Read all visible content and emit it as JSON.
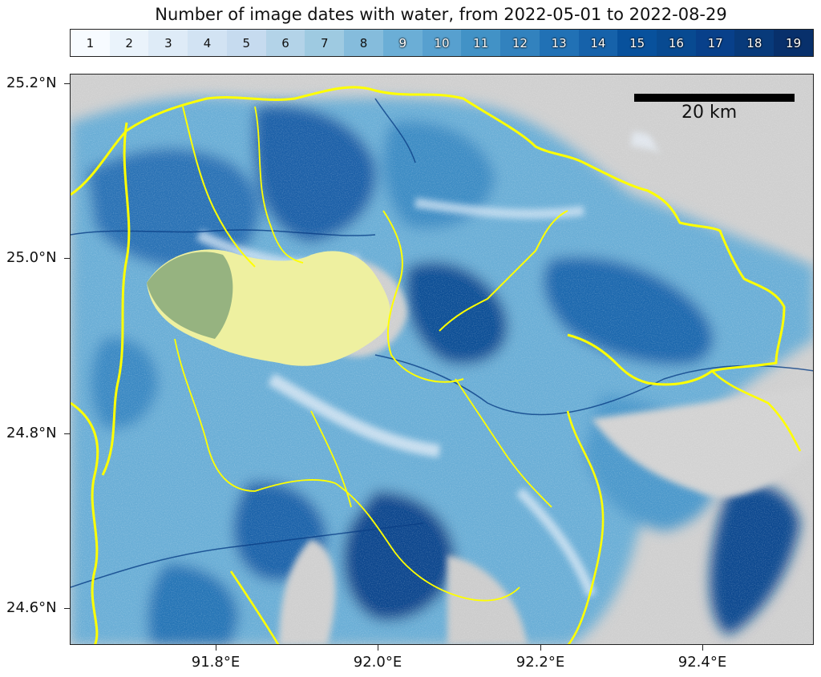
{
  "title": "Number of image dates with water, from 2022-05-01 to 2022-08-29",
  "legend": {
    "labels": [
      "1",
      "2",
      "3",
      "4",
      "5",
      "6",
      "7",
      "8",
      "9",
      "10",
      "11",
      "12",
      "13",
      "14",
      "15",
      "16",
      "17",
      "18",
      "19"
    ],
    "colors": [
      "#f7fbff",
      "#eaf3fb",
      "#deebf7",
      "#d2e3f3",
      "#c6dbef",
      "#b3d3e8",
      "#9ecae1",
      "#85bcdc",
      "#6baed6",
      "#57a0cf",
      "#4292c6",
      "#3282be",
      "#2171b5",
      "#1662aa",
      "#08519c",
      "#084a91",
      "#08408a",
      "#083a7a",
      "#08306b"
    ]
  },
  "scale_bar": {
    "label": "20 km"
  },
  "axes": {
    "y_ticks": [
      "25.2°N",
      "25.0°N",
      "24.8°N",
      "24.6°N"
    ],
    "x_ticks": [
      "91.8°E",
      "92.0°E",
      "92.2°E",
      "92.4°E"
    ]
  },
  "overlay_colors": {
    "boundary": "#ffff00",
    "urban": "#eef0a0",
    "no_water": "#cfcfcf"
  }
}
